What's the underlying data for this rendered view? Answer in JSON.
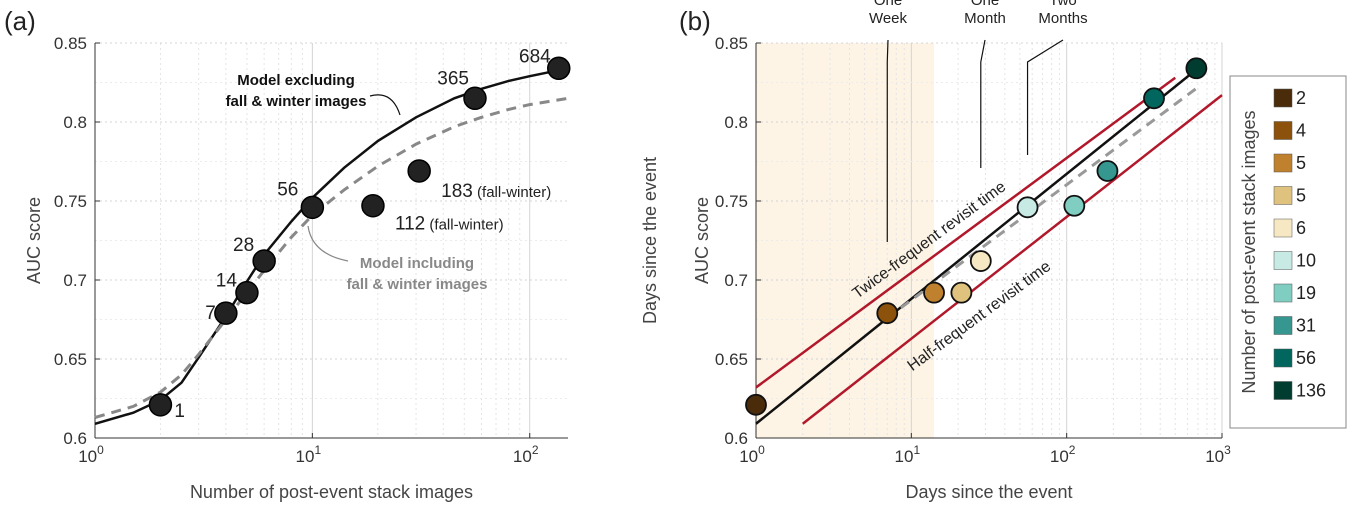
{
  "chart_data": [
    {
      "panel_label": "(a)",
      "type": "scatter",
      "xlabel": "Number of post-event stack images",
      "ylabel": "AUC score",
      "xscale": "log",
      "xlim": [
        1,
        150
      ],
      "ylim": [
        0.6,
        0.85
      ],
      "yticks": [
        "0.6",
        "0.65",
        "0.7",
        "0.75",
        "0.8",
        "0.85"
      ],
      "grid": true,
      "points": [
        {
          "x": 2,
          "y": 0.621,
          "label": "1"
        },
        {
          "x": 4,
          "y": 0.679,
          "label": "7"
        },
        {
          "x": 5,
          "y": 0.692,
          "label": "14"
        },
        {
          "x": 6,
          "y": 0.712,
          "label": "28"
        },
        {
          "x": 10,
          "y": 0.746,
          "label": "56"
        },
        {
          "x": 19,
          "y": 0.747,
          "label": "112",
          "suffix": "(fall-winter)"
        },
        {
          "x": 31,
          "y": 0.769,
          "label": "183",
          "suffix": "(fall-winter)"
        },
        {
          "x": 56,
          "y": 0.815,
          "label": "365"
        },
        {
          "x": 136,
          "y": 0.834,
          "label": "684"
        }
      ],
      "series": [
        {
          "name": "Model excluding fall & winter images",
          "name_lines": [
            "Model excluding",
            "fall & winter images"
          ],
          "style": "solid",
          "color": "#111111",
          "x": [
            1,
            1.5,
            2,
            2.5,
            3,
            4,
            5,
            6,
            8,
            10,
            14,
            20,
            30,
            45,
            60,
            80,
            100,
            150
          ],
          "y": [
            0.609,
            0.616,
            0.624,
            0.635,
            0.651,
            0.677,
            0.699,
            0.716,
            0.737,
            0.752,
            0.771,
            0.788,
            0.803,
            0.815,
            0.821,
            0.826,
            0.829,
            0.834
          ]
        },
        {
          "name": "Model including fall & winter images",
          "name_lines": [
            "Model including",
            "fall & winter images"
          ],
          "style": "dashed",
          "color": "#888888",
          "x": [
            1,
            1.5,
            2,
            2.5,
            3,
            4,
            5,
            6,
            8,
            10,
            14,
            20,
            30,
            45,
            60,
            80,
            100,
            150
          ],
          "y": [
            0.613,
            0.62,
            0.629,
            0.64,
            0.653,
            0.675,
            0.692,
            0.706,
            0.727,
            0.741,
            0.757,
            0.772,
            0.786,
            0.797,
            0.803,
            0.808,
            0.811,
            0.815
          ]
        }
      ]
    },
    {
      "panel_label": "(b)",
      "type": "scatter",
      "xlabel": "Days since the event",
      "ylabel": "AUC score",
      "ylabel_outer": "Days since the event",
      "xscale": "log",
      "xlim": [
        1,
        1000
      ],
      "ylim": [
        0.6,
        0.85
      ],
      "yticks": [
        "0.6",
        "0.65",
        "0.7",
        "0.75",
        "0.8",
        "0.85"
      ],
      "grid": true,
      "shaded_region": {
        "x": [
          1,
          14
        ]
      },
      "points": [
        {
          "x": 1,
          "y": 0.621,
          "color": "#4a2c0a"
        },
        {
          "x": 7,
          "y": 0.679,
          "color": "#8c510a"
        },
        {
          "x": 14,
          "y": 0.692,
          "color": "#bf812d"
        },
        {
          "x": 21,
          "y": 0.692,
          "color": "#dfc27d"
        },
        {
          "x": 28,
          "y": 0.712,
          "color": "#f6e8c3"
        },
        {
          "x": 56,
          "y": 0.746,
          "color": "#c7eae5"
        },
        {
          "x": 112,
          "y": 0.747,
          "color": "#80cdc1"
        },
        {
          "x": 183,
          "y": 0.769,
          "color": "#35978f"
        },
        {
          "x": 365,
          "y": 0.815,
          "color": "#01665e"
        },
        {
          "x": 684,
          "y": 0.834,
          "color": "#003c30"
        }
      ],
      "lines": [
        {
          "name": "fit",
          "style": "solid",
          "color": "#111111",
          "x": [
            1,
            700
          ],
          "y": [
            0.609,
            0.834
          ]
        },
        {
          "name": "dashed",
          "style": "dashed",
          "color": "#999999",
          "x": [
            7,
            700
          ],
          "y": [
            0.676,
            0.822
          ]
        },
        {
          "name": "Twice-frequent revisit time",
          "style": "solid",
          "color": "#b2182b",
          "x": [
            1,
            500
          ],
          "y": [
            0.632,
            0.828
          ]
        },
        {
          "name": "Half-frequent revisit time",
          "style": "solid",
          "color": "#b2182b",
          "x": [
            2,
            1000
          ],
          "y": [
            0.609,
            0.817
          ]
        }
      ],
      "line_labels": {
        "upper": "Twice-frequent revisit time",
        "lower": "Half-frequent revisit time"
      },
      "windows": [
        {
          "label_lines": [
            "One",
            "Week"
          ],
          "x": 7
        },
        {
          "label_lines": [
            "One",
            "Month"
          ],
          "x": 28
        },
        {
          "label_lines": [
            "Two",
            "Months"
          ],
          "x": 56
        }
      ],
      "legend": {
        "title": "Number of post-event stack images",
        "placement": "right",
        "entries": [
          {
            "label": "2",
            "color": "#4a2c0a"
          },
          {
            "label": "4",
            "color": "#8c510a"
          },
          {
            "label": "5",
            "color": "#bf812d"
          },
          {
            "label": "5",
            "color": "#dfc27d"
          },
          {
            "label": "6",
            "color": "#f6e8c3"
          },
          {
            "label": "10",
            "color": "#c7eae5"
          },
          {
            "label": "19",
            "color": "#80cdc1"
          },
          {
            "label": "31",
            "color": "#35978f"
          },
          {
            "label": "56",
            "color": "#01665e"
          },
          {
            "label": "136",
            "color": "#003c30"
          }
        ]
      }
    }
  ]
}
